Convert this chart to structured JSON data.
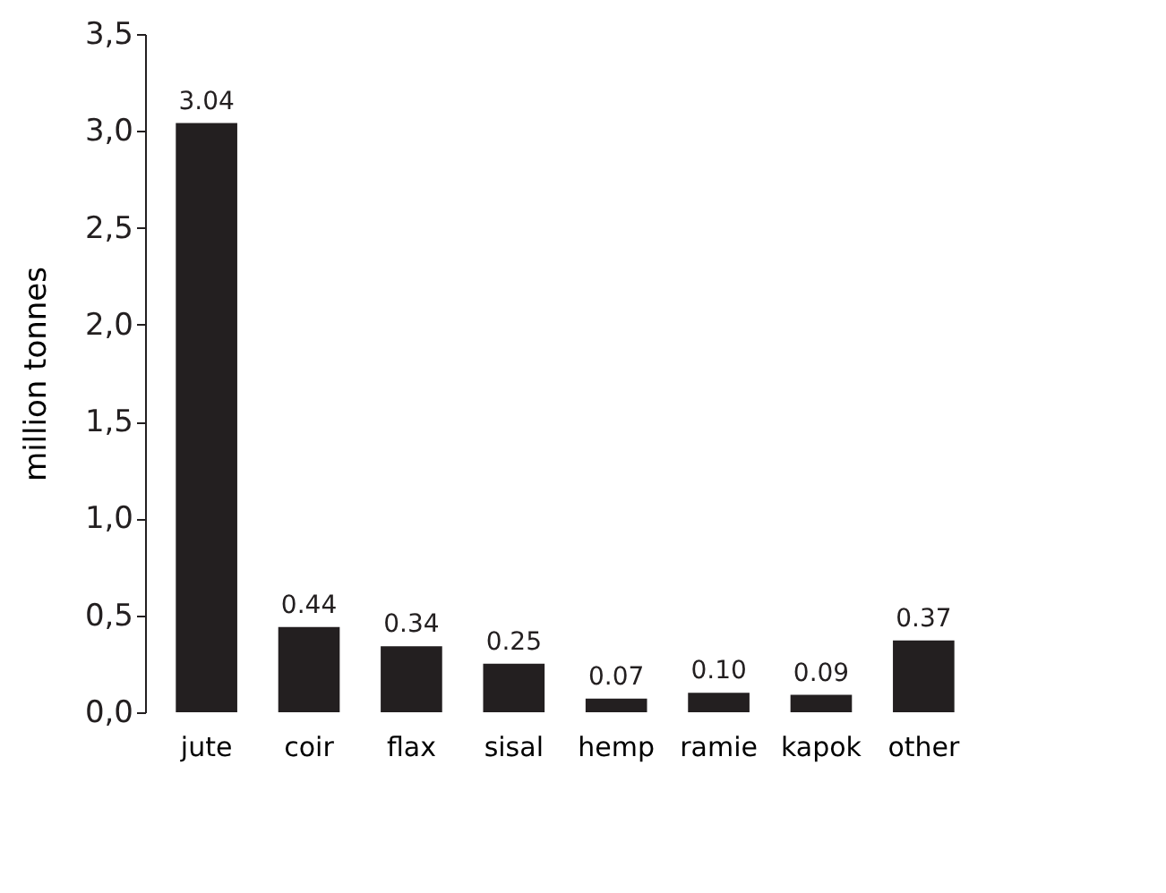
{
  "chart_data": {
    "type": "bar",
    "ylabel": "million tonnes",
    "categories": [
      "jute",
      "coir",
      "flax",
      "sisal",
      "hemp",
      "ramie",
      "kapok",
      "other"
    ],
    "values": [
      3.04,
      0.44,
      0.34,
      0.25,
      0.07,
      0.1,
      0.09,
      0.37
    ],
    "value_labels": [
      "3.04",
      "0.44",
      "0.34",
      "0.25",
      "0.07",
      "0.10",
      "0.09",
      "0.37"
    ],
    "color": "#231f20",
    "ylim": [
      0,
      3.5
    ],
    "yticks": [
      {
        "value": 0,
        "label": "0,0"
      },
      {
        "value": 0.5,
        "label": "0,5"
      },
      {
        "value": 1,
        "label": "1,0"
      },
      {
        "value": 1.5,
        "label": "1,5"
      },
      {
        "value": 2,
        "label": "2,0"
      },
      {
        "value": 2.5,
        "label": "2,5"
      },
      {
        "value": 3,
        "label": "3,0"
      },
      {
        "value": 3.5,
        "label": "3,5"
      }
    ],
    "grid": false
  }
}
